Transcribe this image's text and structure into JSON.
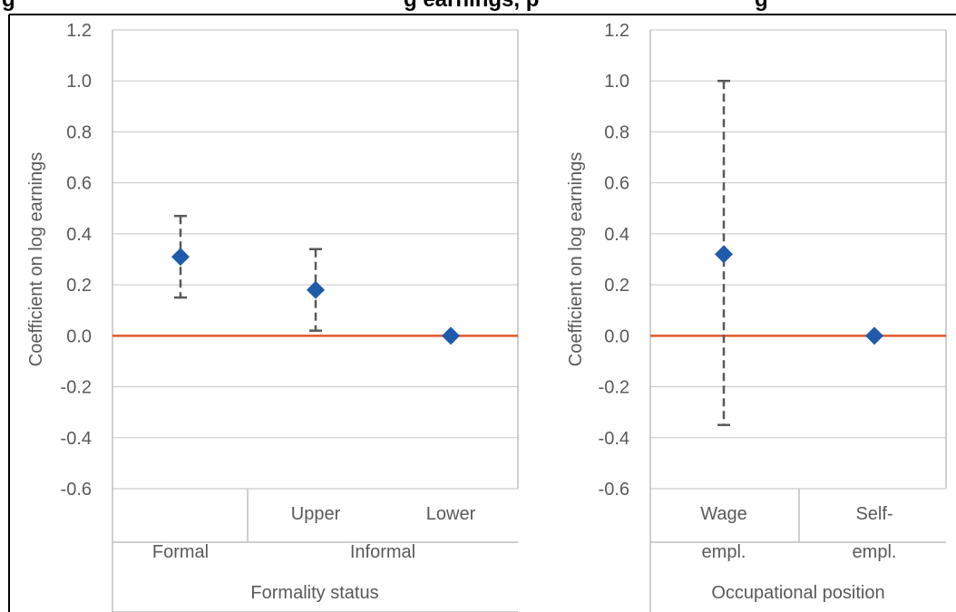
{
  "header": {
    "fragment_a": "g",
    "fragment_b": "g earnings, p",
    "fragment_c": "g"
  },
  "colors": {
    "marker": "#1F5BAA",
    "zero_line": "#E0582A",
    "error_bar": "#595959",
    "gridline": "#C8C8C8",
    "frame": "#BFBFBF"
  },
  "chart_data": [
    {
      "type": "scatter",
      "error_bars": true,
      "ylabel": "Coefficient on log earnings",
      "ylim": [
        -0.6,
        1.2
      ],
      "yticks": [
        "1.2",
        "1.0",
        "0.8",
        "0.6",
        "0.4",
        "0.2",
        "0.0",
        "-0.2",
        "-0.4",
        "-0.6"
      ],
      "grid": true,
      "reference_line_y": 0,
      "points": [
        {
          "x": "Formal",
          "y": 0.31,
          "lower": 0.15,
          "upper": 0.47
        },
        {
          "x": "Upper",
          "y": 0.18,
          "lower": 0.02,
          "upper": 0.34
        },
        {
          "x": "Lower",
          "y": 0.0
        }
      ],
      "category_levels": {
        "level1": [
          "",
          "Upper",
          "Lower"
        ],
        "level2": [
          "Formal",
          "Informal"
        ],
        "level3": "Formality status"
      }
    },
    {
      "type": "scatter",
      "error_bars": true,
      "ylabel": "Coefficient on log earnings",
      "ylim": [
        -0.6,
        1.2
      ],
      "yticks": [
        "1.2",
        "1.0",
        "0.8",
        "0.6",
        "0.4",
        "0.2",
        "0.0",
        "-0.2",
        "-0.4",
        "-0.6"
      ],
      "grid": true,
      "reference_line_y": 0,
      "points": [
        {
          "x": "Wage empl.",
          "y": 0.32,
          "lower": -0.35,
          "upper": 1.0
        },
        {
          "x": "Self-empl.",
          "y": 0.0
        }
      ],
      "category_levels": {
        "level1_line1": [
          "Wage",
          "Self-"
        ],
        "level1_line2": [
          "empl.",
          "empl."
        ],
        "level3": "Occupational position"
      }
    }
  ]
}
